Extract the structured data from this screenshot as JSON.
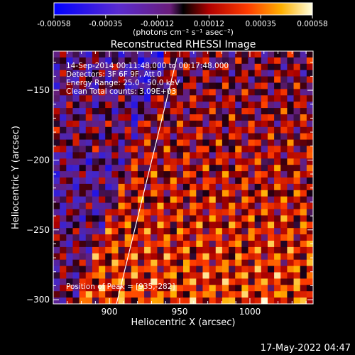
{
  "chart_data": {
    "type": "heatmap",
    "title": "Reconstructed RHESSI Image",
    "xlabel": "Heliocentric X (arcsec)",
    "ylabel": "Heliocentric Y (arcsec)",
    "xlim": [
      860,
      1045
    ],
    "ylim": [
      -303,
      -122
    ],
    "x_ticks": [
      900,
      950,
      1000
    ],
    "y_ticks": [
      -150,
      -200,
      -250,
      -300
    ],
    "colorbar": {
      "ticks": [
        "-0.00058",
        "-0.00035",
        "-0.00012",
        "0.00012",
        "0.00035",
        "0.00058"
      ],
      "label": "(photons cm⁻² s⁻¹ asec⁻²)",
      "min": -0.00058,
      "max": 0.00058
    },
    "annotations": [
      "14-Sep-2014 00:11:48.000 to 00:17:48.000",
      "Detectors: 3F 6F 9F, Att 0",
      "Energy Range: 25.0 - 50.0 keV",
      "Clean    Total counts: 3.09E+03"
    ],
    "peak_label": "Position of Peak = [935,-282]",
    "limb_line": [
      [
        905,
        -303
      ],
      [
        948,
        -127
      ]
    ]
  },
  "timestamp": "17-May-2022 04:47"
}
